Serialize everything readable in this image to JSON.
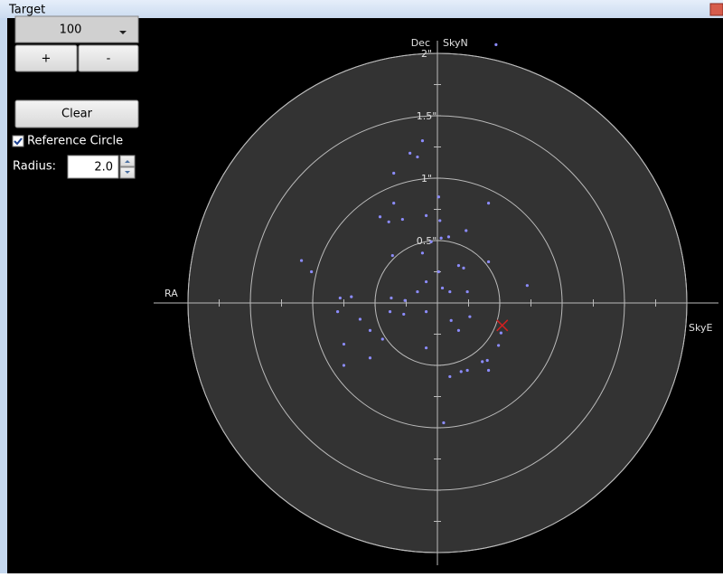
{
  "window": {
    "title": "Target"
  },
  "controls": {
    "dropdown": "100",
    "plus": "+",
    "minus": "-",
    "clear": "Clear",
    "reference_circle": {
      "label": "Reference Circle",
      "checked": true
    },
    "radius": {
      "label": "Radius:",
      "value": "2.0"
    }
  },
  "chart_data": {
    "type": "scatter",
    "axis_labels": {
      "north": "Dec",
      "north_sky": "SkyN",
      "west": "RA",
      "east_sky": "SkyE"
    },
    "xlim": [
      -2,
      2
    ],
    "ylim": [
      -2,
      2
    ],
    "rings": [
      {
        "value": 0.5,
        "label": "0.5\""
      },
      {
        "value": 1,
        "label": "1\""
      },
      {
        "value": 1.5,
        "label": "1.5\""
      },
      {
        "value": 2,
        "label": "2\""
      }
    ],
    "ticks": [
      -2,
      -1.75,
      -1.5,
      -1.25,
      -1,
      -0.75,
      -0.5,
      -0.25,
      0.25,
      0.5,
      0.75,
      1,
      1.25,
      1.5,
      1.75,
      2
    ],
    "color": "#8c8cff",
    "x": [
      0.47,
      -0.12,
      -0.22,
      -0.16,
      -0.35,
      0.01,
      -0.35,
      0.41,
      -0.46,
      -0.09,
      -0.28,
      -0.39,
      0.02,
      0.23,
      0.03,
      0.09,
      -0.05,
      -0.12,
      -0.36,
      -1.09,
      -1.01,
      0.01,
      0.17,
      0.21,
      0.41,
      0.72,
      -0.09,
      -0.16,
      0.04,
      0.1,
      0.24,
      -0.26,
      -0.37,
      -0.69,
      -0.78,
      -0.8,
      -0.38,
      -0.27,
      -0.09,
      0.26,
      0.11,
      -0.62,
      -0.54,
      0.17,
      0.51,
      -0.44,
      -0.09,
      0.49,
      -0.75,
      -0.54,
      -0.75,
      0.4,
      0.36,
      0.24,
      0.19,
      0.41,
      0.1,
      0.05
    ],
    "values": [
      2.07,
      1.3,
      1.2,
      1.17,
      1.04,
      0.85,
      0.8,
      0.8,
      0.69,
      0.7,
      0.67,
      0.65,
      0.66,
      0.58,
      0.52,
      0.53,
      0.49,
      0.4,
      0.38,
      0.34,
      0.25,
      0.25,
      0.3,
      0.28,
      0.33,
      0.14,
      0.17,
      0.09,
      0.12,
      0.09,
      0.09,
      0.02,
      0.04,
      0.05,
      0.04,
      -0.07,
      -0.07,
      -0.09,
      -0.07,
      -0.11,
      -0.14,
      -0.13,
      -0.22,
      -0.22,
      -0.24,
      -0.29,
      -0.36,
      -0.34,
      -0.33,
      -0.44,
      -0.5,
      -0.46,
      -0.47,
      -0.54,
      -0.55,
      -0.54,
      -0.59,
      -0.96
    ],
    "target": {
      "x": 0.52,
      "y": -0.18,
      "color": "#d02020"
    }
  }
}
